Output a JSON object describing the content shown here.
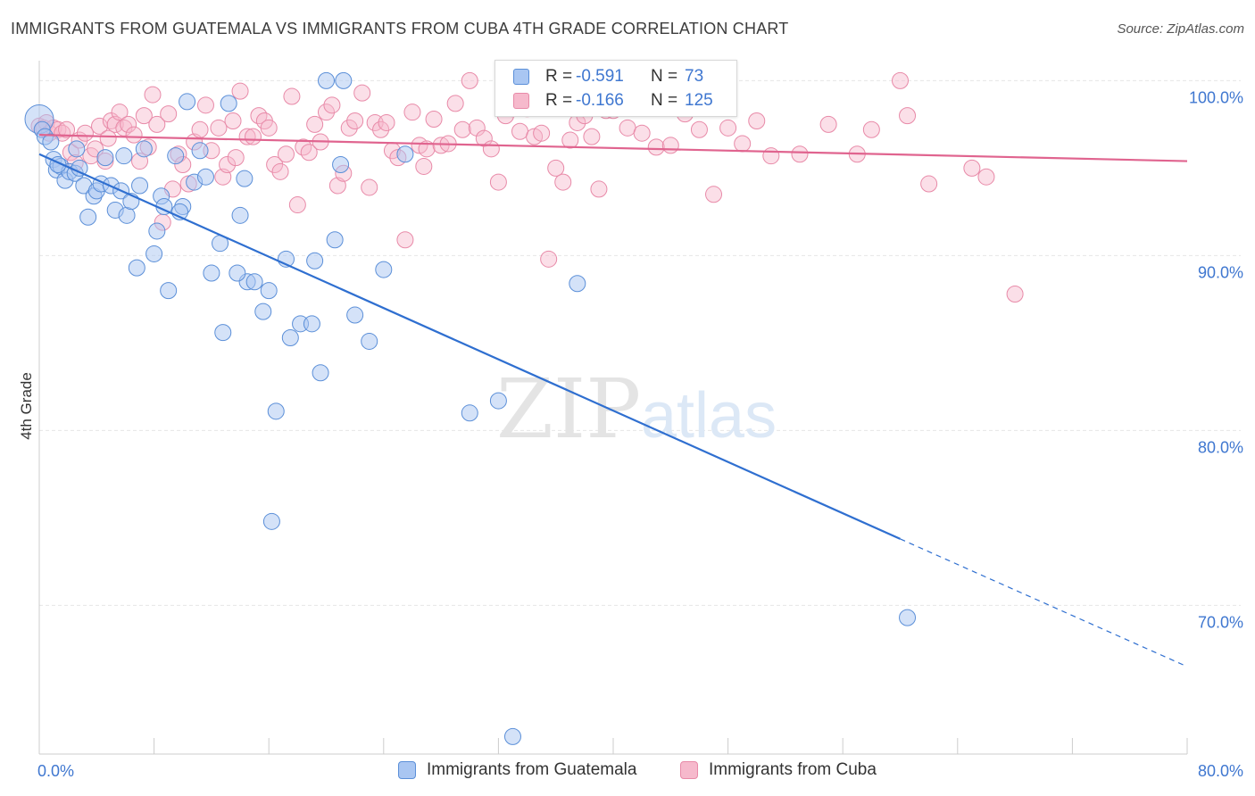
{
  "header": {
    "title": "IMMIGRANTS FROM GUATEMALA VS IMMIGRANTS FROM CUBA 4TH GRADE CORRELATION CHART",
    "source": "Source: ZipAtlas.com"
  },
  "watermark": {
    "zip": "ZIP",
    "atlas": "atlas"
  },
  "stats": {
    "rows": [
      {
        "r_label": "R =",
        "r_value": "-0.591",
        "n_label": "N =",
        "n_value": "73",
        "color": "#a9c6f2"
      },
      {
        "r_label": "R =",
        "r_value": "-0.166",
        "n_label": "N =",
        "n_value": "125",
        "color": "#f6b9cc"
      }
    ]
  },
  "legend": {
    "items": [
      {
        "label": "Immigrants from Guatemala",
        "color": "#a9c6f2"
      },
      {
        "label": "Immigrants from Cuba",
        "color": "#f6b9cc"
      }
    ]
  },
  "colors": {
    "guatemala_fill": "#a9c6f2",
    "guatemala_stroke": "#5b8fd8",
    "guatemala_line": "#2f6fd0",
    "cuba_fill": "#f6b9cc",
    "cuba_stroke": "#e88aa8",
    "cuba_line": "#e0648f",
    "tick_label": "#3f77d0"
  },
  "chart_data": {
    "type": "scatter",
    "title": "IMMIGRANTS FROM GUATEMALA VS IMMIGRANTS FROM CUBA 4TH GRADE CORRELATION CHART",
    "xlabel": "",
    "ylabel": "4th Grade",
    "xlim": [
      0,
      80
    ],
    "ylim": [
      61.5,
      101.5
    ],
    "x_tick_labels": [
      {
        "value": 0,
        "label": "0.0%"
      },
      {
        "value": 80,
        "label": "80.0%"
      }
    ],
    "y_tick_labels": [
      {
        "value": 100,
        "label": "100.0%"
      },
      {
        "value": 90,
        "label": "90.0%"
      },
      {
        "value": 80,
        "label": "80.0%"
      },
      {
        "value": 70,
        "label": "70.0%"
      }
    ],
    "grid": true,
    "legend_position": "bottom",
    "series": [
      {
        "name": "Immigrants from Guatemala",
        "r": -0.591,
        "n": 73,
        "trend": {
          "x0": 0.0,
          "y0": 95.8,
          "x1": 60.0,
          "y1": 73.8,
          "dash_to_x": 80.0,
          "dash_to_y": 66.5
        },
        "points": [
          [
            0.0,
            97.8
          ],
          [
            0.2,
            97.2
          ],
          [
            0.4,
            96.8
          ],
          [
            0.8,
            96.5
          ],
          [
            1.0,
            95.5
          ],
          [
            1.2,
            94.9
          ],
          [
            1.5,
            95.1
          ],
          [
            1.8,
            94.3
          ],
          [
            2.1,
            94.8
          ],
          [
            2.5,
            94.7
          ],
          [
            2.8,
            95.0
          ],
          [
            3.1,
            94.0
          ],
          [
            3.4,
            92.2
          ],
          [
            3.8,
            93.4
          ],
          [
            4.0,
            93.7
          ],
          [
            4.3,
            94.1
          ],
          [
            4.6,
            95.6
          ],
          [
            5.0,
            94.0
          ],
          [
            5.3,
            92.6
          ],
          [
            5.7,
            93.7
          ],
          [
            6.1,
            92.3
          ],
          [
            6.4,
            93.1
          ],
          [
            6.8,
            89.3
          ],
          [
            7.0,
            94.0
          ],
          [
            7.3,
            96.1
          ],
          [
            8.0,
            90.1
          ],
          [
            8.5,
            93.4
          ],
          [
            8.7,
            92.8
          ],
          [
            9.0,
            88.0
          ],
          [
            9.5,
            95.7
          ],
          [
            10.0,
            92.8
          ],
          [
            10.3,
            98.8
          ],
          [
            10.8,
            94.2
          ],
          [
            11.2,
            96.0
          ],
          [
            12.0,
            89.0
          ],
          [
            12.6,
            90.7
          ],
          [
            12.8,
            85.6
          ],
          [
            13.2,
            98.7
          ],
          [
            14.0,
            92.3
          ],
          [
            14.3,
            94.4
          ],
          [
            14.5,
            88.5
          ],
          [
            15.0,
            88.5
          ],
          [
            15.6,
            86.8
          ],
          [
            16.0,
            88.0
          ],
          [
            16.2,
            74.8
          ],
          [
            16.5,
            81.1
          ],
          [
            17.5,
            85.3
          ],
          [
            18.2,
            86.1
          ],
          [
            19.0,
            86.1
          ],
          [
            19.6,
            83.3
          ],
          [
            20.0,
            100.0
          ],
          [
            20.6,
            90.9
          ],
          [
            21.0,
            95.2
          ],
          [
            21.2,
            100.0
          ],
          [
            22.0,
            86.6
          ],
          [
            23.0,
            85.1
          ],
          [
            24.0,
            89.2
          ],
          [
            25.5,
            95.8
          ],
          [
            30.0,
            81.0
          ],
          [
            32.0,
            81.7
          ],
          [
            33.0,
            62.5
          ],
          [
            34.5,
            100.0
          ],
          [
            37.5,
            88.4
          ],
          [
            60.5,
            69.3
          ],
          [
            1.3,
            95.2
          ],
          [
            2.6,
            96.1
          ],
          [
            5.9,
            95.7
          ],
          [
            11.6,
            94.5
          ],
          [
            9.8,
            92.5
          ],
          [
            8.2,
            91.4
          ],
          [
            17.2,
            89.8
          ],
          [
            19.2,
            89.7
          ],
          [
            13.8,
            89.0
          ]
        ]
      },
      {
        "name": "Immigrants from Cuba",
        "r": -0.166,
        "n": 125,
        "trend": {
          "x0": 0.0,
          "y0": 96.9,
          "x1": 80.0,
          "y1": 95.4
        },
        "points": [
          [
            0.0,
            97.4
          ],
          [
            0.3,
            97.3
          ],
          [
            0.5,
            97.6
          ],
          [
            0.7,
            97.0
          ],
          [
            1.0,
            97.3
          ],
          [
            1.3,
            97.2
          ],
          [
            1.6,
            97.0
          ],
          [
            1.9,
            97.2
          ],
          [
            2.2,
            95.9
          ],
          [
            2.5,
            95.3
          ],
          [
            2.8,
            96.6
          ],
          [
            3.2,
            97.0
          ],
          [
            3.6,
            95.7
          ],
          [
            3.9,
            96.1
          ],
          [
            4.2,
            97.4
          ],
          [
            4.6,
            95.4
          ],
          [
            5.0,
            97.7
          ],
          [
            5.3,
            97.5
          ],
          [
            5.6,
            98.2
          ],
          [
            5.9,
            97.3
          ],
          [
            6.2,
            97.5
          ],
          [
            6.6,
            96.9
          ],
          [
            7.0,
            95.4
          ],
          [
            7.3,
            98.0
          ],
          [
            7.6,
            96.2
          ],
          [
            7.9,
            99.2
          ],
          [
            8.2,
            97.5
          ],
          [
            8.6,
            91.9
          ],
          [
            9.0,
            98.1
          ],
          [
            9.3,
            93.8
          ],
          [
            9.7,
            95.8
          ],
          [
            10.0,
            95.2
          ],
          [
            10.4,
            94.1
          ],
          [
            10.8,
            96.5
          ],
          [
            11.2,
            97.2
          ],
          [
            11.6,
            98.6
          ],
          [
            12.0,
            96.0
          ],
          [
            12.5,
            97.3
          ],
          [
            12.8,
            94.5
          ],
          [
            13.1,
            95.2
          ],
          [
            13.5,
            97.7
          ],
          [
            14.0,
            99.4
          ],
          [
            14.5,
            96.8
          ],
          [
            14.9,
            96.8
          ],
          [
            15.3,
            98.0
          ],
          [
            15.7,
            97.7
          ],
          [
            16.0,
            97.3
          ],
          [
            16.4,
            95.2
          ],
          [
            16.8,
            94.8
          ],
          [
            17.2,
            95.8
          ],
          [
            17.6,
            99.1
          ],
          [
            18.0,
            92.9
          ],
          [
            18.4,
            96.2
          ],
          [
            18.8,
            95.9
          ],
          [
            19.2,
            97.5
          ],
          [
            19.6,
            96.5
          ],
          [
            20.0,
            98.2
          ],
          [
            20.4,
            98.6
          ],
          [
            20.8,
            94.0
          ],
          [
            21.2,
            94.7
          ],
          [
            21.6,
            97.3
          ],
          [
            22.0,
            97.7
          ],
          [
            22.5,
            99.3
          ],
          [
            23.0,
            93.9
          ],
          [
            23.4,
            97.6
          ],
          [
            23.8,
            97.2
          ],
          [
            24.2,
            97.6
          ],
          [
            24.6,
            96.0
          ],
          [
            25.0,
            95.6
          ],
          [
            25.5,
            90.9
          ],
          [
            26.0,
            98.2
          ],
          [
            26.5,
            96.3
          ],
          [
            27.0,
            96.1
          ],
          [
            27.5,
            97.8
          ],
          [
            28.0,
            96.3
          ],
          [
            28.5,
            96.4
          ],
          [
            29.0,
            98.7
          ],
          [
            29.5,
            97.2
          ],
          [
            30.0,
            100.0
          ],
          [
            30.5,
            97.3
          ],
          [
            31.0,
            96.7
          ],
          [
            31.5,
            96.1
          ],
          [
            32.0,
            94.2
          ],
          [
            32.5,
            98.0
          ],
          [
            33.0,
            98.4
          ],
          [
            33.5,
            97.1
          ],
          [
            34.0,
            98.4
          ],
          [
            34.5,
            96.8
          ],
          [
            35.0,
            97.0
          ],
          [
            35.5,
            89.8
          ],
          [
            36.0,
            95.0
          ],
          [
            36.5,
            94.2
          ],
          [
            37.0,
            96.6
          ],
          [
            37.5,
            97.6
          ],
          [
            38.0,
            98.0
          ],
          [
            38.5,
            96.8
          ],
          [
            39.0,
            93.8
          ],
          [
            39.5,
            98.3
          ],
          [
            40.0,
            98.3
          ],
          [
            41.0,
            97.3
          ],
          [
            42.0,
            97.0
          ],
          [
            43.0,
            96.2
          ],
          [
            44.0,
            96.3
          ],
          [
            45.0,
            98.1
          ],
          [
            46.0,
            97.2
          ],
          [
            47.0,
            93.5
          ],
          [
            48.0,
            97.3
          ],
          [
            49.0,
            96.4
          ],
          [
            50.0,
            97.7
          ],
          [
            51.0,
            95.7
          ],
          [
            53.0,
            95.8
          ],
          [
            55.0,
            97.5
          ],
          [
            57.0,
            95.8
          ],
          [
            58.0,
            97.2
          ],
          [
            60.0,
            100.0
          ],
          [
            60.5,
            98.0
          ],
          [
            62.0,
            94.1
          ],
          [
            65.0,
            95.0
          ],
          [
            66.0,
            94.5
          ],
          [
            68.0,
            87.8
          ],
          [
            4.8,
            96.7
          ],
          [
            13.7,
            95.6
          ],
          [
            26.8,
            95.1
          ]
        ]
      }
    ]
  }
}
